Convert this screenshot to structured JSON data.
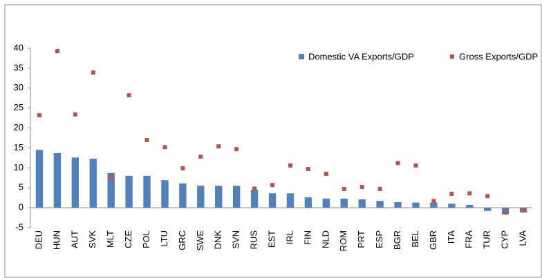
{
  "chart_data": {
    "type": "bar_scatter",
    "categories": [
      "DEU",
      "HUN",
      "AUT",
      "SVK",
      "MLT",
      "CZE",
      "POL",
      "LTU",
      "GRC",
      "SWE",
      "DNK",
      "SVN",
      "RUS",
      "EST",
      "IRL",
      "FIN",
      "NLD",
      "ROM",
      "PRT",
      "ESP",
      "BGR",
      "BEL",
      "GBR",
      "ITA",
      "FRA",
      "TUR",
      "CYP",
      "LVA"
    ],
    "series": [
      {
        "name": "Domestic VA Exports/GDP",
        "color": "#4f81bd",
        "kind": "bar",
        "values": [
          14.5,
          13.7,
          12.6,
          12.3,
          8.7,
          8.0,
          8.0,
          6.9,
          6.1,
          5.5,
          5.5,
          5.5,
          4.5,
          3.6,
          3.6,
          2.6,
          2.3,
          2.3,
          2.1,
          1.7,
          1.4,
          1.3,
          1.3,
          1.0,
          0.7,
          -0.8,
          -1.6,
          -1.2
        ]
      },
      {
        "name": "Gross Exports/GDP",
        "color": "#c0504d",
        "kind": "marker",
        "values": [
          23.2,
          39.3,
          23.4,
          33.9,
          7.6,
          28.2,
          17.0,
          15.2,
          9.9,
          12.8,
          15.4,
          14.7,
          4.8,
          5.7,
          10.6,
          9.7,
          8.5,
          4.7,
          5.2,
          4.7,
          11.2,
          10.6,
          1.7,
          3.5,
          3.6,
          2.9,
          -1.2,
          -0.7
        ]
      }
    ],
    "ylim": [
      -5,
      40
    ],
    "yticks": [
      -5,
      0,
      5,
      10,
      15,
      20,
      25,
      30,
      35,
      40
    ],
    "grid": false,
    "legend": "top-right"
  }
}
